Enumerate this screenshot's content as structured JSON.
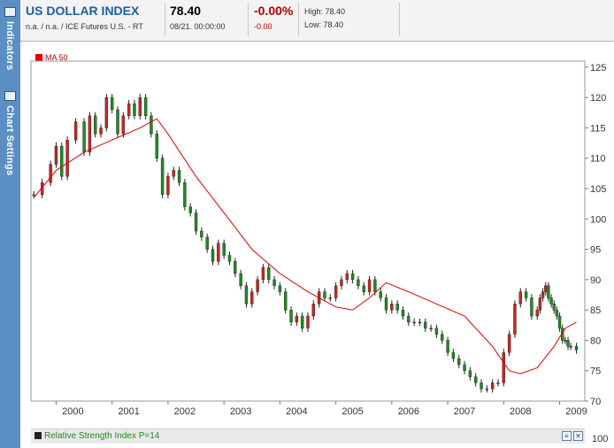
{
  "sidebar": {
    "indicators_label": "Indicators",
    "chart_settings_label": "Chart Settings"
  },
  "header": {
    "title": "US DOLLAR INDEX",
    "source": "n.a. / n.a. / ICE Futures U.S. - RT",
    "last": "78.40",
    "date": "08/21. 00:00:00",
    "change_pct": "-0.00%",
    "change_abs": "-0.00",
    "high": "High: 78.40",
    "low": "Low: 78.40"
  },
  "legend": {
    "ma_label": "MA 50"
  },
  "rsi": {
    "label": "Relative Strength Index P=14",
    "axis_top": "100"
  },
  "colors": {
    "up": "#cc2222",
    "down": "#1f8a1f",
    "ma": "#e30000",
    "axis": "#777777"
  },
  "chart_data": {
    "type": "line",
    "title": "",
    "xlabel": "",
    "ylabel": "",
    "ylim": [
      70,
      126
    ],
    "xlim": [
      1999.55,
      2009.45
    ],
    "yticks": [
      70,
      75,
      80,
      85,
      90,
      95,
      100,
      105,
      110,
      115,
      120,
      125
    ],
    "xticks": [
      "2000",
      "2001",
      "2002",
      "2003",
      "2004",
      "2005",
      "2006",
      "2007",
      "2008",
      "2009"
    ],
    "series": [
      {
        "name": "price",
        "x": [
          1999.6,
          1999.75,
          1999.9,
          2000.0,
          2000.1,
          2000.2,
          2000.35,
          2000.5,
          2000.6,
          2000.7,
          2000.8,
          2000.9,
          2001.0,
          2001.1,
          2001.2,
          2001.3,
          2001.4,
          2001.5,
          2001.6,
          2001.7,
          2001.8,
          2001.9,
          2002.0,
          2002.1,
          2002.2,
          2002.3,
          2002.4,
          2002.5,
          2002.6,
          2002.7,
          2002.8,
          2002.9,
          2003.0,
          2003.1,
          2003.2,
          2003.3,
          2003.4,
          2003.5,
          2003.6,
          2003.7,
          2003.8,
          2003.9,
          2004.0,
          2004.1,
          2004.2,
          2004.3,
          2004.4,
          2004.5,
          2004.6,
          2004.7,
          2004.8,
          2004.9,
          2005.0,
          2005.1,
          2005.2,
          2005.3,
          2005.4,
          2005.5,
          2005.6,
          2005.7,
          2005.8,
          2005.9,
          2006.0,
          2006.1,
          2006.2,
          2006.3,
          2006.4,
          2006.5,
          2006.6,
          2006.7,
          2006.8,
          2006.9,
          2007.0,
          2007.1,
          2007.2,
          2007.3,
          2007.4,
          2007.5,
          2007.6,
          2007.7,
          2007.8,
          2007.9,
          2008.0,
          2008.1,
          2008.2,
          2008.3,
          2008.4,
          2008.5,
          2008.6,
          2008.65,
          2008.7,
          2008.75,
          2008.8,
          2008.85,
          2008.9,
          2008.95,
          2009.0,
          2009.05,
          2009.1,
          2009.15,
          2009.2,
          2009.3
        ],
        "values": [
          104,
          106,
          109,
          112,
          107,
          113,
          116,
          111,
          117,
          114,
          115,
          120,
          118,
          114,
          117,
          119,
          117,
          120,
          117,
          114,
          110,
          104,
          107,
          108,
          106,
          102,
          101,
          98,
          97,
          95,
          93,
          96,
          94,
          93,
          91,
          89,
          86,
          88,
          90,
          92,
          90,
          89,
          88,
          85,
          83,
          84,
          82,
          84,
          86,
          88,
          87,
          87,
          89,
          90,
          91,
          90,
          89,
          88,
          90,
          88,
          87,
          85,
          86,
          85,
          84,
          83,
          83,
          83,
          82,
          82,
          81,
          80,
          78,
          77,
          76,
          75,
          74,
          73,
          72,
          72,
          73,
          73,
          78,
          81,
          86,
          88,
          87,
          84,
          85,
          87,
          88,
          89,
          87,
          86,
          85,
          84,
          82,
          80,
          80,
          79,
          79,
          78.4
        ]
      },
      {
        "name": "MA 50",
        "x": [
          1999.6,
          2000.0,
          2000.5,
          2001.0,
          2001.5,
          2001.8,
          2002.0,
          2002.5,
          2003.0,
          2003.5,
          2004.0,
          2004.5,
          2005.0,
          2005.3,
          2005.6,
          2005.9,
          2006.3,
          2006.8,
          2007.3,
          2007.8,
          2008.1,
          2008.3,
          2008.6,
          2008.9,
          2009.1,
          2009.3
        ],
        "values": [
          103.5,
          108,
          111,
          113,
          115,
          116.5,
          114,
          107,
          101,
          95,
          91,
          88,
          85.5,
          85,
          87,
          89.5,
          88,
          86,
          84,
          79,
          75,
          74.5,
          75.5,
          79,
          82,
          83
        ]
      }
    ]
  }
}
